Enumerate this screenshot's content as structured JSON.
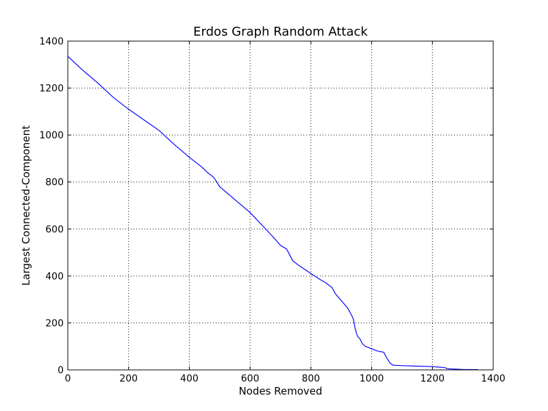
{
  "chart_data": {
    "type": "line",
    "title": "Erdos Graph Random Attack",
    "xlabel": "Nodes Removed",
    "ylabel": "Largest Connected-Component",
    "xlim": [
      0,
      1400
    ],
    "ylim": [
      0,
      1400
    ],
    "xticks": [
      0,
      200,
      400,
      600,
      800,
      1000,
      1200,
      1400
    ],
    "yticks": [
      0,
      200,
      400,
      600,
      800,
      1000,
      1200,
      1400
    ],
    "grid": true,
    "colors": {
      "series": "#0000ff"
    },
    "series": [
      {
        "x": [
          0,
          50,
          100,
          150,
          200,
          250,
          300,
          350,
          400,
          440,
          460,
          480,
          500,
          550,
          600,
          640,
          680,
          700,
          720,
          740,
          760,
          800,
          830,
          850,
          870,
          880,
          900,
          920,
          935,
          940,
          945,
          950,
          955,
          960,
          970,
          980,
          1000,
          1020,
          1040,
          1050,
          1060,
          1070,
          1100,
          1150,
          1200,
          1240,
          1250,
          1280,
          1300,
          1350
        ],
        "y": [
          1335,
          1275,
          1220,
          1160,
          1110,
          1065,
          1020,
          960,
          905,
          865,
          840,
          820,
          780,
          725,
          670,
          615,
          560,
          530,
          515,
          465,
          445,
          410,
          385,
          370,
          350,
          325,
          295,
          265,
          230,
          215,
          180,
          155,
          140,
          135,
          110,
          100,
          90,
          80,
          75,
          50,
          30,
          20,
          18,
          16,
          14,
          10,
          5,
          3,
          2,
          1
        ]
      }
    ]
  }
}
